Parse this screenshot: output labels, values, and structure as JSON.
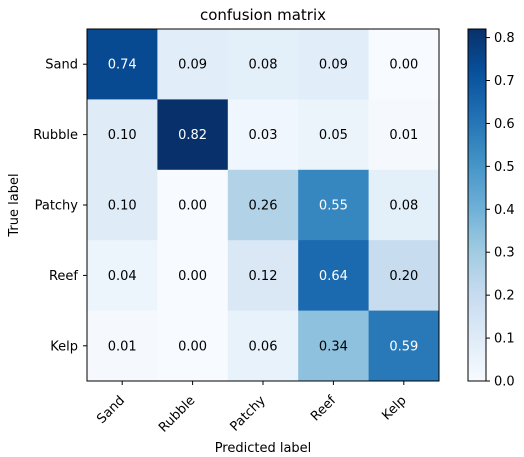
{
  "chart_data": {
    "type": "heatmap",
    "title": "confusion matrix",
    "xlabel": "Predicted label",
    "ylabel": "True label",
    "x_categories": [
      "Sand",
      "Rubble",
      "Patchy",
      "Reef",
      "Kelp"
    ],
    "y_categories": [
      "Sand",
      "Rubble",
      "Patchy",
      "Reef",
      "Kelp"
    ],
    "values": [
      [
        0.74,
        0.09,
        0.08,
        0.09,
        0.0
      ],
      [
        0.1,
        0.82,
        0.03,
        0.05,
        0.01
      ],
      [
        0.1,
        0.0,
        0.26,
        0.55,
        0.08
      ],
      [
        0.04,
        0.0,
        0.12,
        0.64,
        0.2
      ],
      [
        0.01,
        0.0,
        0.06,
        0.34,
        0.59
      ]
    ],
    "value_labels": [
      [
        "0.74",
        "0.09",
        "0.08",
        "0.09",
        "0.00"
      ],
      [
        "0.10",
        "0.82",
        "0.03",
        "0.05",
        "0.01"
      ],
      [
        "0.10",
        "0.00",
        "0.26",
        "0.55",
        "0.08"
      ],
      [
        "0.04",
        "0.00",
        "0.12",
        "0.64",
        "0.20"
      ],
      [
        "0.01",
        "0.00",
        "0.06",
        "0.34",
        "0.59"
      ]
    ],
    "colormap": "Blues",
    "colormap_stops": [
      "#f7fbff",
      "#deebf7",
      "#c6dbef",
      "#9ecae1",
      "#6baed6",
      "#4292c6",
      "#2171b5",
      "#08519c",
      "#08306b"
    ],
    "text_color_dark": "#000000",
    "text_color_light": "#ffffff",
    "colorbar": {
      "min": 0.0,
      "max": 0.82,
      "ticks": [
        0.0,
        0.1,
        0.2,
        0.3,
        0.4,
        0.5,
        0.6,
        0.7,
        0.8
      ],
      "tick_labels": [
        "0.0",
        "0.1",
        "0.2",
        "0.3",
        "0.4",
        "0.5",
        "0.6",
        "0.7",
        "0.8"
      ]
    },
    "grid": false,
    "legend": "colorbar-right"
  }
}
